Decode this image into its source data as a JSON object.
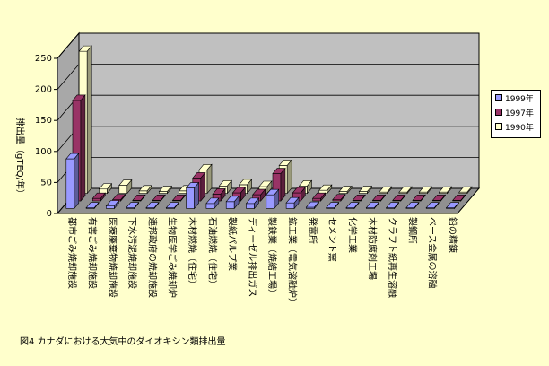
{
  "caption": "図4 カナダにおける大気中のダイオキシン類排出量",
  "chart_data": {
    "type": "bar",
    "ylabel": "排出量（gTEQ/年）",
    "ylim": [
      0,
      250
    ],
    "yticks": [
      0,
      50,
      100,
      150,
      200,
      250
    ],
    "grid": true,
    "legend_position": "right",
    "categories": [
      "都市ごみ焼却施設",
      "有害ごみ焼却施設",
      "医療廃棄物焼却施設",
      "下水汚泥焼却施設",
      "連邦政府の焼却施設",
      "生物医学ごみ焼却炉",
      "木材燃焼（住宅）",
      "石油燃焼（住宅）",
      "製紙パルプ業",
      "ディーゼル排出ガス",
      "製鉄業（焼結工場）",
      "鉱工業（電気溶融炉）",
      "発電所",
      "セメント窯",
      "化学工業",
      "木材防腐剤工場",
      "クラフト紙再生溶融",
      "製鋼所",
      "ベース金属の溶融",
      "鉛の精錬"
    ],
    "series": [
      {
        "name": "1999年",
        "color": "#9999FF",
        "values": [
          80,
          1,
          4,
          1,
          1,
          1,
          33,
          8,
          11,
          8,
          22,
          9,
          2,
          1,
          1,
          1,
          1,
          1,
          1,
          1
        ]
      },
      {
        "name": "1997年",
        "color": "#993366",
        "values": [
          162,
          4,
          2,
          1,
          1,
          1,
          37,
          11,
          13,
          10,
          44,
          13,
          4,
          2,
          1,
          1,
          1,
          1,
          1,
          1
        ]
      },
      {
        "name": "1990年",
        "color": "#FFFFCC",
        "values": [
          229,
          7,
          13,
          4,
          3,
          4,
          38,
          12,
          14,
          11,
          45,
          12,
          5,
          3,
          3,
          2,
          2,
          2,
          2,
          2
        ]
      }
    ]
  }
}
